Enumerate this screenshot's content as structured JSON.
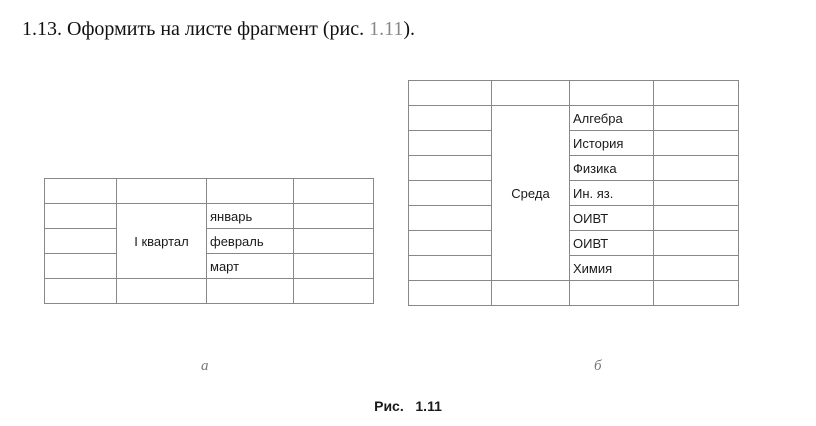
{
  "task": {
    "number": "1.13.",
    "text": "Оформить на листе фрагмент (рис.",
    "ref": "1.11",
    "end": ")."
  },
  "table_a": {
    "merged_label": "I квартал",
    "items": [
      "январь",
      "февраль",
      "март"
    ],
    "sublabel": "а"
  },
  "table_b": {
    "merged_label": "Среда",
    "items": [
      "Алгебра",
      "История",
      "Физика",
      "Ин. яз.",
      "ОИВТ",
      "ОИВТ",
      "Химия"
    ],
    "sublabel": "б"
  },
  "caption": "Рис.   1.11"
}
